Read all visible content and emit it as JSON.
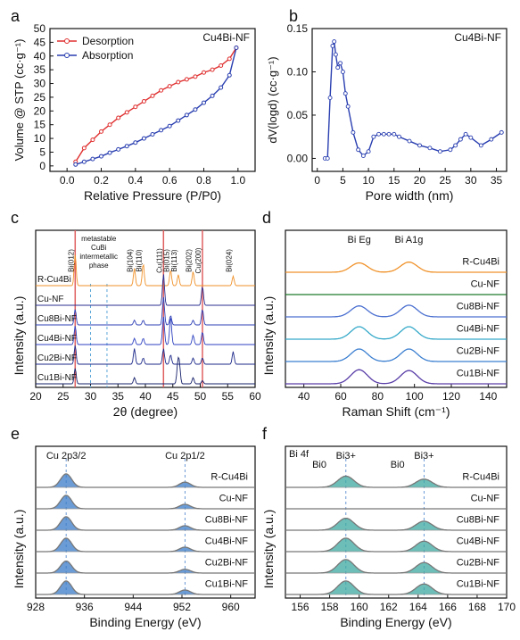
{
  "colors": {
    "desorption": "#e03030",
    "absorption": "#2a3fb0",
    "pore": "#2a3fb0",
    "xrd": [
      "#f0922a",
      "#2a2f8f",
      "#2d3fb5",
      "#2e42c0",
      "#1e2a8a",
      "#16206a"
    ],
    "raman": [
      "#f0922a",
      "#1e7a2a",
      "#4a6fd0",
      "#35a9c9",
      "#3b7fd0",
      "#5a3fa8"
    ],
    "xps_cu": "#3a7bc8",
    "xps_bi_top": "#8f4fc0",
    "xps_bi_bottom": "#3ca8a0"
  },
  "chart_data": [
    {
      "panel": "a",
      "type": "line",
      "title": "",
      "annotation": "Cu4Bi-NF",
      "xlabel": "Relative Pressure (P/P0)",
      "ylabel": "Volume @ STP (cc·g⁻¹)",
      "xlim": [
        -0.1,
        1.1
      ],
      "ylim": [
        -2,
        50
      ],
      "xticks": [
        0.0,
        0.2,
        0.4,
        0.6,
        0.8,
        1.0
      ],
      "xtick_labels": [
        "0.0",
        "0.2",
        "0.4",
        "0.6",
        "0.8",
        "1.0"
      ],
      "yticks": [
        0,
        5,
        10,
        15,
        20,
        25,
        30,
        35,
        40,
        45,
        50
      ],
      "ytick_labels": [
        "0",
        "5",
        "10",
        "15",
        "20",
        "25",
        "30",
        "35",
        "40",
        "45",
        "50"
      ],
      "legend": "top-left",
      "series": [
        {
          "name": "Desorption",
          "x": [
            0.05,
            0.1,
            0.15,
            0.2,
            0.25,
            0.3,
            0.35,
            0.4,
            0.45,
            0.5,
            0.55,
            0.6,
            0.65,
            0.7,
            0.75,
            0.8,
            0.85,
            0.9,
            0.95,
            0.99
          ],
          "y": [
            1.5,
            6.5,
            9.5,
            12.5,
            15,
            17.5,
            19.5,
            21.5,
            23.5,
            25.5,
            27.5,
            29,
            30.5,
            31.5,
            32.5,
            34,
            35,
            36.5,
            39,
            43
          ]
        },
        {
          "name": "Absorption",
          "x": [
            0.05,
            0.1,
            0.15,
            0.2,
            0.25,
            0.3,
            0.35,
            0.4,
            0.45,
            0.5,
            0.55,
            0.6,
            0.65,
            0.7,
            0.75,
            0.8,
            0.85,
            0.9,
            0.95,
            0.99
          ],
          "y": [
            0.5,
            1.5,
            2.5,
            3.5,
            4.8,
            6,
            7.2,
            8.5,
            10,
            11.5,
            13,
            14.5,
            16.5,
            18.5,
            20.5,
            23,
            25.5,
            28.5,
            33,
            43
          ]
        }
      ]
    },
    {
      "panel": "b",
      "type": "line",
      "title": "",
      "annotation": "Cu4Bi-NF",
      "xlabel": "Pore width (nm)",
      "ylabel": "dV(logd) (cc·g⁻¹)",
      "xlim": [
        -1,
        37
      ],
      "ylim": [
        -0.015,
        0.15
      ],
      "xticks": [
        0,
        5,
        10,
        15,
        20,
        25,
        30,
        35
      ],
      "xtick_labels": [
        "0",
        "5",
        "10",
        "15",
        "20",
        "25",
        "30",
        "35"
      ],
      "yticks": [
        0.0,
        0.05,
        0.1,
        0.15
      ],
      "ytick_labels": [
        "0.00",
        "0.05",
        "0.10",
        "0.15"
      ],
      "series": [
        {
          "name": "",
          "x": [
            1.5,
            2,
            2.5,
            3,
            3.3,
            3.6,
            4,
            4.5,
            5,
            5.5,
            6,
            7,
            8,
            9,
            10,
            11,
            12,
            13,
            14,
            15,
            16,
            18,
            20,
            22,
            24,
            26,
            27,
            28,
            29,
            30,
            32,
            34,
            36
          ],
          "y": [
            0.0,
            0.0,
            0.07,
            0.13,
            0.135,
            0.12,
            0.105,
            0.11,
            0.1,
            0.075,
            0.06,
            0.03,
            0.01,
            0.003,
            0.008,
            0.025,
            0.028,
            0.028,
            0.028,
            0.028,
            0.025,
            0.02,
            0.015,
            0.012,
            0.008,
            0.01,
            0.015,
            0.022,
            0.028,
            0.024,
            0.015,
            0.022,
            0.03
          ]
        }
      ]
    },
    {
      "panel": "c",
      "type": "line",
      "title": "",
      "xlabel": "2θ (degree)",
      "ylabel": "Intensity (a.u.)",
      "xlim": [
        20,
        60
      ],
      "xticks": [
        20,
        25,
        30,
        35,
        40,
        45,
        50,
        55,
        60
      ],
      "xtick_labels": [
        "20",
        "25",
        "30",
        "35",
        "40",
        "45",
        "50",
        "55",
        "60"
      ],
      "reference_lines": [
        27.2,
        43.3,
        50.4
      ],
      "intermetallic_lines": [
        30,
        33
      ],
      "intermetallic_label": [
        "metastable",
        "CuBi",
        "intermetallic",
        "phase"
      ],
      "peak_labels": [
        {
          "label": "Bi(012)",
          "x": 27.2
        },
        {
          "label": "Bi(104)",
          "x": 38.0
        },
        {
          "label": "Bi(110)",
          "x": 39.6
        },
        {
          "label": "Cu(111)",
          "x": 43.3
        },
        {
          "label": "Bi(015)",
          "x": 44.6
        },
        {
          "label": "Bi(113)",
          "x": 46.0
        },
        {
          "label": "Bi(202)",
          "x": 48.7
        },
        {
          "label": "Cu(200)",
          "x": 50.4
        },
        {
          "label": "Bi(024)",
          "x": 56.0
        }
      ],
      "series": [
        {
          "name": "R-Cu4Bi",
          "peaks": [
            [
              27.2,
              1.0
            ],
            [
              38.0,
              0.55
            ],
            [
              39.6,
              0.7
            ],
            [
              44.6,
              0.5
            ],
            [
              46.0,
              0.35
            ],
            [
              48.7,
              0.45
            ],
            [
              56.0,
              0.3
            ]
          ]
        },
        {
          "name": "Cu-NF",
          "peaks": [
            [
              43.3,
              1.0
            ],
            [
              50.4,
              0.6
            ]
          ]
        },
        {
          "name": "Cu8Bi-NF",
          "peaks": [
            [
              27.2,
              0.5
            ],
            [
              38.0,
              0.15
            ],
            [
              39.6,
              0.15
            ],
            [
              43.3,
              0.9
            ],
            [
              44.6,
              0.3
            ],
            [
              48.7,
              0.15
            ],
            [
              50.4,
              0.5
            ]
          ]
        },
        {
          "name": "Cu4Bi-NF",
          "peaks": [
            [
              27.2,
              0.6
            ],
            [
              38.0,
              0.2
            ],
            [
              39.6,
              0.2
            ],
            [
              43.3,
              0.9
            ],
            [
              44.6,
              0.9
            ],
            [
              48.7,
              0.3
            ],
            [
              50.4,
              0.4
            ]
          ]
        },
        {
          "name": "Cu2Bi-NF",
          "peaks": [
            [
              27.2,
              0.6
            ],
            [
              38.0,
              0.5
            ],
            [
              39.6,
              0.2
            ],
            [
              43.3,
              0.5
            ],
            [
              44.6,
              0.3
            ],
            [
              48.7,
              0.2
            ],
            [
              50.4,
              0.2
            ],
            [
              56.0,
              0.4
            ]
          ]
        },
        {
          "name": "Cu1Bi-NF",
          "peaks": [
            [
              27.2,
              0.5
            ],
            [
              38.0,
              0.2
            ],
            [
              45.9,
              0.6
            ],
            [
              46.2,
              0.6
            ],
            [
              48.7,
              0.2
            ],
            [
              50.4,
              0.1
            ]
          ]
        }
      ]
    },
    {
      "panel": "d",
      "type": "line",
      "title": "",
      "xlabel": "Raman Shift (cm⁻¹)",
      "ylabel": "Intensity (a.u.)",
      "xlim": [
        30,
        150
      ],
      "xticks": [
        40,
        60,
        80,
        100,
        120,
        140
      ],
      "xtick_labels": [
        "40",
        "60",
        "80",
        "100",
        "120",
        "140"
      ],
      "peak_labels": [
        {
          "label": "Bi Eg",
          "x": 70
        },
        {
          "label": "Bi A1g",
          "x": 97
        }
      ],
      "series": [
        {
          "name": "R-Cu4Bi",
          "peaks": [
            [
              70,
              0.6
            ],
            [
              97,
              0.65
            ]
          ]
        },
        {
          "name": "Cu-NF",
          "peaks": []
        },
        {
          "name": "Cu8Bi-NF",
          "peaks": [
            [
              70,
              0.7
            ],
            [
              97,
              0.75
            ]
          ]
        },
        {
          "name": "Cu4Bi-NF",
          "peaks": [
            [
              70,
              0.8
            ],
            [
              97,
              0.8
            ]
          ]
        },
        {
          "name": "Cu2Bi-NF",
          "peaks": [
            [
              70,
              0.8
            ],
            [
              97,
              0.8
            ]
          ]
        },
        {
          "name": "Cu1Bi-NF",
          "peaks": [
            [
              70,
              0.9
            ],
            [
              97,
              0.85
            ]
          ]
        }
      ]
    },
    {
      "panel": "e",
      "type": "area",
      "title": "",
      "xlabel": "Binding Energy (eV)",
      "ylabel": "Intensity (a.u.)",
      "xlim": [
        928,
        964
      ],
      "x_reversed": false,
      "xticks": [
        928,
        936,
        944,
        952,
        960
      ],
      "xtick_labels": [
        "928",
        "936",
        "944",
        "952",
        "960"
      ],
      "reference_lines": [
        933.0,
        952.5
      ],
      "peak_labels": [
        {
          "label": "Cu 2p3/2",
          "x": 933.0
        },
        {
          "label": "Cu 2p1/2",
          "x": 952.5
        }
      ],
      "series": [
        {
          "name": "R-Cu4Bi",
          "peaks": [
            [
              933.0,
              0.9
            ],
            [
              952.5,
              0.35
            ]
          ]
        },
        {
          "name": "Cu-NF",
          "peaks": [
            [
              933.0,
              0.9
            ],
            [
              952.5,
              0.3
            ]
          ]
        },
        {
          "name": "Cu8Bi-NF",
          "peaks": [
            [
              933.0,
              0.9
            ],
            [
              952.5,
              0.3
            ]
          ]
        },
        {
          "name": "Cu4Bi-NF",
          "peaks": [
            [
              933.0,
              0.9
            ],
            [
              952.5,
              0.3
            ]
          ]
        },
        {
          "name": "Cu2Bi-NF",
          "peaks": [
            [
              933.0,
              0.8
            ],
            [
              952.5,
              0.25
            ]
          ]
        },
        {
          "name": "Cu1Bi-NF",
          "peaks": [
            [
              933.0,
              0.9
            ],
            [
              952.5,
              0.3
            ]
          ]
        }
      ]
    },
    {
      "panel": "f",
      "type": "area",
      "title": "",
      "annotation": "Bi 4f",
      "xlabel": "Binding Energy (eV)",
      "ylabel": "Intensity (a.u.)",
      "xlim": [
        155,
        170
      ],
      "xticks": [
        156,
        158,
        160,
        162,
        164,
        166,
        168,
        170
      ],
      "xtick_labels": [
        "156",
        "158",
        "160",
        "162",
        "164",
        "166",
        "168",
        "170"
      ],
      "reference_lines": [
        159.1,
        164.4
      ],
      "peak_labels": [
        {
          "label": "Bi0",
          "x": 157.3
        },
        {
          "label": "Bi3+",
          "x": 159.1
        },
        {
          "label": "Bi0",
          "x": 162.6
        },
        {
          "label": "Bi3+",
          "x": 164.4
        }
      ],
      "series": [
        {
          "name": "R-Cu4Bi",
          "peaks": [
            [
              159.1,
              0.75
            ],
            [
              164.4,
              0.55
            ]
          ]
        },
        {
          "name": "Cu-NF",
          "peaks": []
        },
        {
          "name": "Cu8Bi-NF",
          "peaks": [
            [
              159.1,
              0.8
            ],
            [
              164.4,
              0.6
            ]
          ]
        },
        {
          "name": "Cu4Bi-NF",
          "peaks": [
            [
              159.1,
              0.9
            ],
            [
              164.4,
              0.7
            ]
          ]
        },
        {
          "name": "Cu2Bi-NF",
          "peaks": [
            [
              159.1,
              0.9
            ],
            [
              164.4,
              0.7
            ]
          ]
        },
        {
          "name": "Cu1Bi-NF",
          "peaks": [
            [
              159.1,
              0.9
            ],
            [
              164.4,
              0.7
            ]
          ]
        }
      ]
    }
  ],
  "panel_letters": [
    "a",
    "b",
    "c",
    "d",
    "e",
    "f"
  ]
}
